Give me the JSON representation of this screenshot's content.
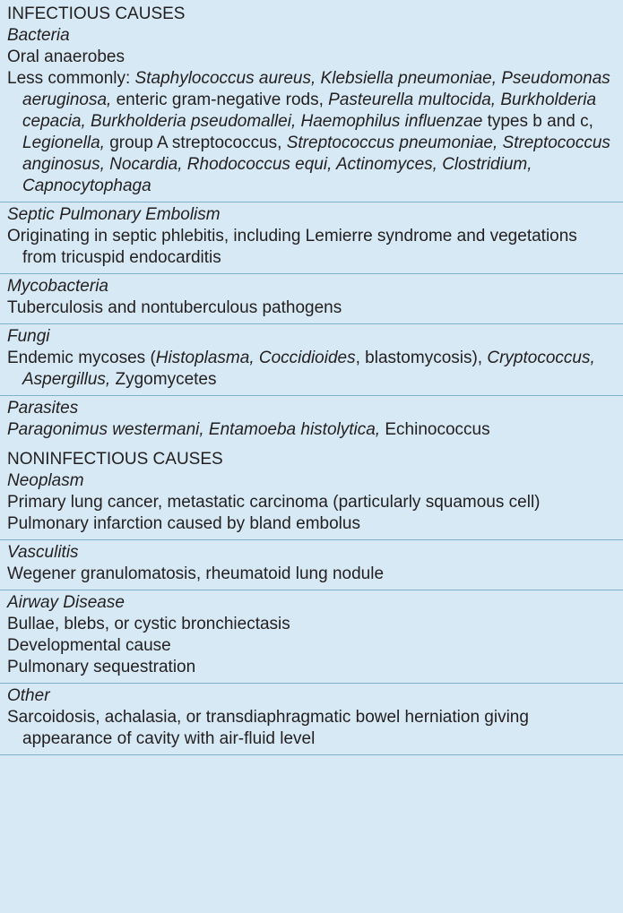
{
  "sections": [
    {
      "heading": "INFECTIOUS CAUSES",
      "groups": [
        {
          "subheading": "Bacteria",
          "entries": [
            [
              {
                "t": "Oral anaerobes"
              }
            ],
            [
              {
                "t": "Less commonly: "
              },
              {
                "t": "Staphylococcus aureus, Klebsiella pneumoniae, Pseudomonas aeruginosa,",
                "i": true
              },
              {
                "t": " enteric gram-negative rods, "
              },
              {
                "t": "Pasteurella multocida, Burkholderia cepacia, Burkholderia pseudomallei, Haemophilus influenzae",
                "i": true
              },
              {
                "t": " types b and c, "
              },
              {
                "t": "Legionella,",
                "i": true
              },
              {
                "t": " group A streptococcus, "
              },
              {
                "t": "Streptococcus pneumoniae, Streptococcus anginosus, Nocardia, Rhodococcus equi, Actinomyces, Clostridium, Capnocytophaga",
                "i": true
              }
            ]
          ]
        },
        {
          "subheading": "Septic Pulmonary Embolism",
          "entries": [
            [
              {
                "t": "Originating in septic phlebitis, including Lemierre syndrome and vegetations from tricuspid endocarditis"
              }
            ]
          ]
        },
        {
          "subheading": "Mycobacteria",
          "entries": [
            [
              {
                "t": "Tuberculosis and nontuberculous pathogens"
              }
            ]
          ]
        },
        {
          "subheading": "Fungi",
          "entries": [
            [
              {
                "t": "Endemic mycoses ("
              },
              {
                "t": "Histoplasma, Coccidioides",
                "i": true
              },
              {
                "t": ", blastomycosis), "
              },
              {
                "t": "Cryptococcus, Aspergillus,",
                "i": true
              },
              {
                "t": " Zygomycetes"
              }
            ]
          ]
        },
        {
          "subheading": "Parasites",
          "entries": [
            [
              {
                "t": "Paragonimus westermani, Entamoeba histolytica,",
                "i": true
              },
              {
                "t": " Echinococcus"
              }
            ]
          ]
        }
      ]
    },
    {
      "heading": "NONINFECTIOUS CAUSES",
      "groups": [
        {
          "subheading": "Neoplasm",
          "entries": [
            [
              {
                "t": "Primary lung cancer, metastatic carcinoma (particularly squamous cell)"
              }
            ],
            [
              {
                "t": "Pulmonary infarction caused by bland embolus"
              }
            ]
          ]
        },
        {
          "subheading": "Vasculitis",
          "entries": [
            [
              {
                "t": "Wegener granulomatosis, rheumatoid lung nodule"
              }
            ]
          ]
        },
        {
          "subheading": "Airway Disease",
          "entries": [
            [
              {
                "t": "Bullae, blebs, or cystic bronchiectasis"
              }
            ],
            [
              {
                "t": "Developmental cause"
              }
            ],
            [
              {
                "t": "Pulmonary sequestration"
              }
            ]
          ]
        },
        {
          "subheading": "Other",
          "entries": [
            [
              {
                "t": "Sarcoidosis, achalasia, or transdiaphragmatic bowel herniation giving appearance of cavity with air-fluid level"
              }
            ]
          ]
        }
      ]
    }
  ],
  "colors": {
    "background": "#d6e9f4",
    "rule": "#7fb0cf",
    "text": "#231f20"
  }
}
